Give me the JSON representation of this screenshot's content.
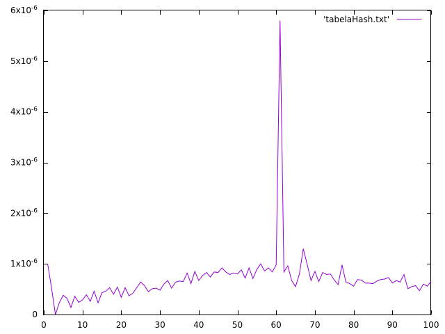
{
  "chart_data": {
    "type": "line",
    "xlim": [
      0,
      100
    ],
    "ylim": [
      0,
      6e-06
    ],
    "grid": false,
    "legend_position": "top-right",
    "x_ticks": [
      {
        "value": 0,
        "label": "0"
      },
      {
        "value": 10,
        "label": "10"
      },
      {
        "value": 20,
        "label": "20"
      },
      {
        "value": 30,
        "label": "30"
      },
      {
        "value": 40,
        "label": "40"
      },
      {
        "value": 50,
        "label": "50"
      },
      {
        "value": 60,
        "label": "60"
      },
      {
        "value": 70,
        "label": "70"
      },
      {
        "value": 80,
        "label": "80"
      },
      {
        "value": 90,
        "label": "90"
      },
      {
        "value": 100,
        "label": "100"
      }
    ],
    "y_ticks": [
      {
        "value": 0,
        "mant": "0",
        "exp": ""
      },
      {
        "value": 1e-06,
        "mant": "1x10",
        "exp": "-6"
      },
      {
        "value": 2e-06,
        "mant": "2x10",
        "exp": "-6"
      },
      {
        "value": 3e-06,
        "mant": "3x10",
        "exp": "-6"
      },
      {
        "value": 4e-06,
        "mant": "4x10",
        "exp": "-6"
      },
      {
        "value": 5e-06,
        "mant": "5x10",
        "exp": "-6"
      },
      {
        "value": 6e-06,
        "mant": "6x10",
        "exp": "-6"
      }
    ],
    "series": [
      {
        "name": "'tabelaHash.txt'",
        "color": "#9400d3",
        "x": [
          1,
          2,
          3,
          4,
          5,
          6,
          7,
          8,
          9,
          10,
          11,
          12,
          13,
          14,
          15,
          16,
          17,
          18,
          19,
          20,
          21,
          22,
          23,
          24,
          25,
          26,
          27,
          28,
          29,
          30,
          31,
          32,
          33,
          34,
          35,
          36,
          37,
          38,
          39,
          40,
          41,
          42,
          43,
          44,
          45,
          46,
          47,
          48,
          49,
          50,
          51,
          52,
          53,
          54,
          55,
          56,
          57,
          58,
          59,
          60,
          61,
          62,
          63,
          64,
          65,
          66,
          67,
          68,
          69,
          70,
          71,
          72,
          73,
          74,
          75,
          76,
          77,
          78,
          79,
          80,
          81,
          82,
          83,
          84,
          85,
          86,
          87,
          88,
          89,
          90,
          91,
          92,
          93,
          94,
          95,
          96,
          97,
          98,
          99,
          100
        ],
        "values": [
          1e-06,
          5.2e-07,
          0,
          2.3e-07,
          3.8e-07,
          3.2e-07,
          1.4e-07,
          3.6e-07,
          2.4e-07,
          2.9e-07,
          3.9e-07,
          2.6e-07,
          4.6e-07,
          2.3e-07,
          4.3e-07,
          4.6e-07,
          5.3e-07,
          4e-07,
          5.4e-07,
          3.4e-07,
          5.3e-07,
          3.7e-07,
          4.2e-07,
          5.3e-07,
          6.4e-07,
          5.7e-07,
          4.5e-07,
          5.1e-07,
          5.2e-07,
          4.8e-07,
          6e-07,
          6.7e-07,
          5.2e-07,
          6.4e-07,
          6.6e-07,
          6.5e-07,
          8.2e-07,
          6.1e-07,
          8.5e-07,
          6.7e-07,
          7.7e-07,
          8.3e-07,
          7.4e-07,
          8.4e-07,
          8.3e-07,
          9.2e-07,
          8.4e-07,
          7.9e-07,
          8.2e-07,
          8e-07,
          8.8e-07,
          7.2e-07,
          9.2e-07,
          7.1e-07,
          8.9e-07,
          1e-06,
          8.6e-07,
          9.2e-07,
          8.4e-07,
          9.8e-07,
          5.8e-06,
          8.4e-07,
          9.6e-07,
          6.7e-07,
          5.5e-07,
          8e-07,
          1.3e-06,
          9.9e-07,
          6.7e-07,
          8.5e-07,
          6.5e-07,
          8.3e-07,
          7.9e-07,
          8e-07,
          6.8e-07,
          5.9e-07,
          9.8e-07,
          6.4e-07,
          6.1e-07,
          5.6e-07,
          6.9e-07,
          6.8e-07,
          6.2e-07,
          6.2e-07,
          6.1e-07,
          6.6e-07,
          6.9e-07,
          7e-07,
          7.3e-07,
          6.2e-07,
          6.7e-07,
          6.4e-07,
          7.9e-07,
          5.1e-07,
          5.5e-07,
          5.7e-07,
          4.7e-07,
          6e-07,
          5.6e-07,
          6.5e-07
        ]
      }
    ]
  }
}
